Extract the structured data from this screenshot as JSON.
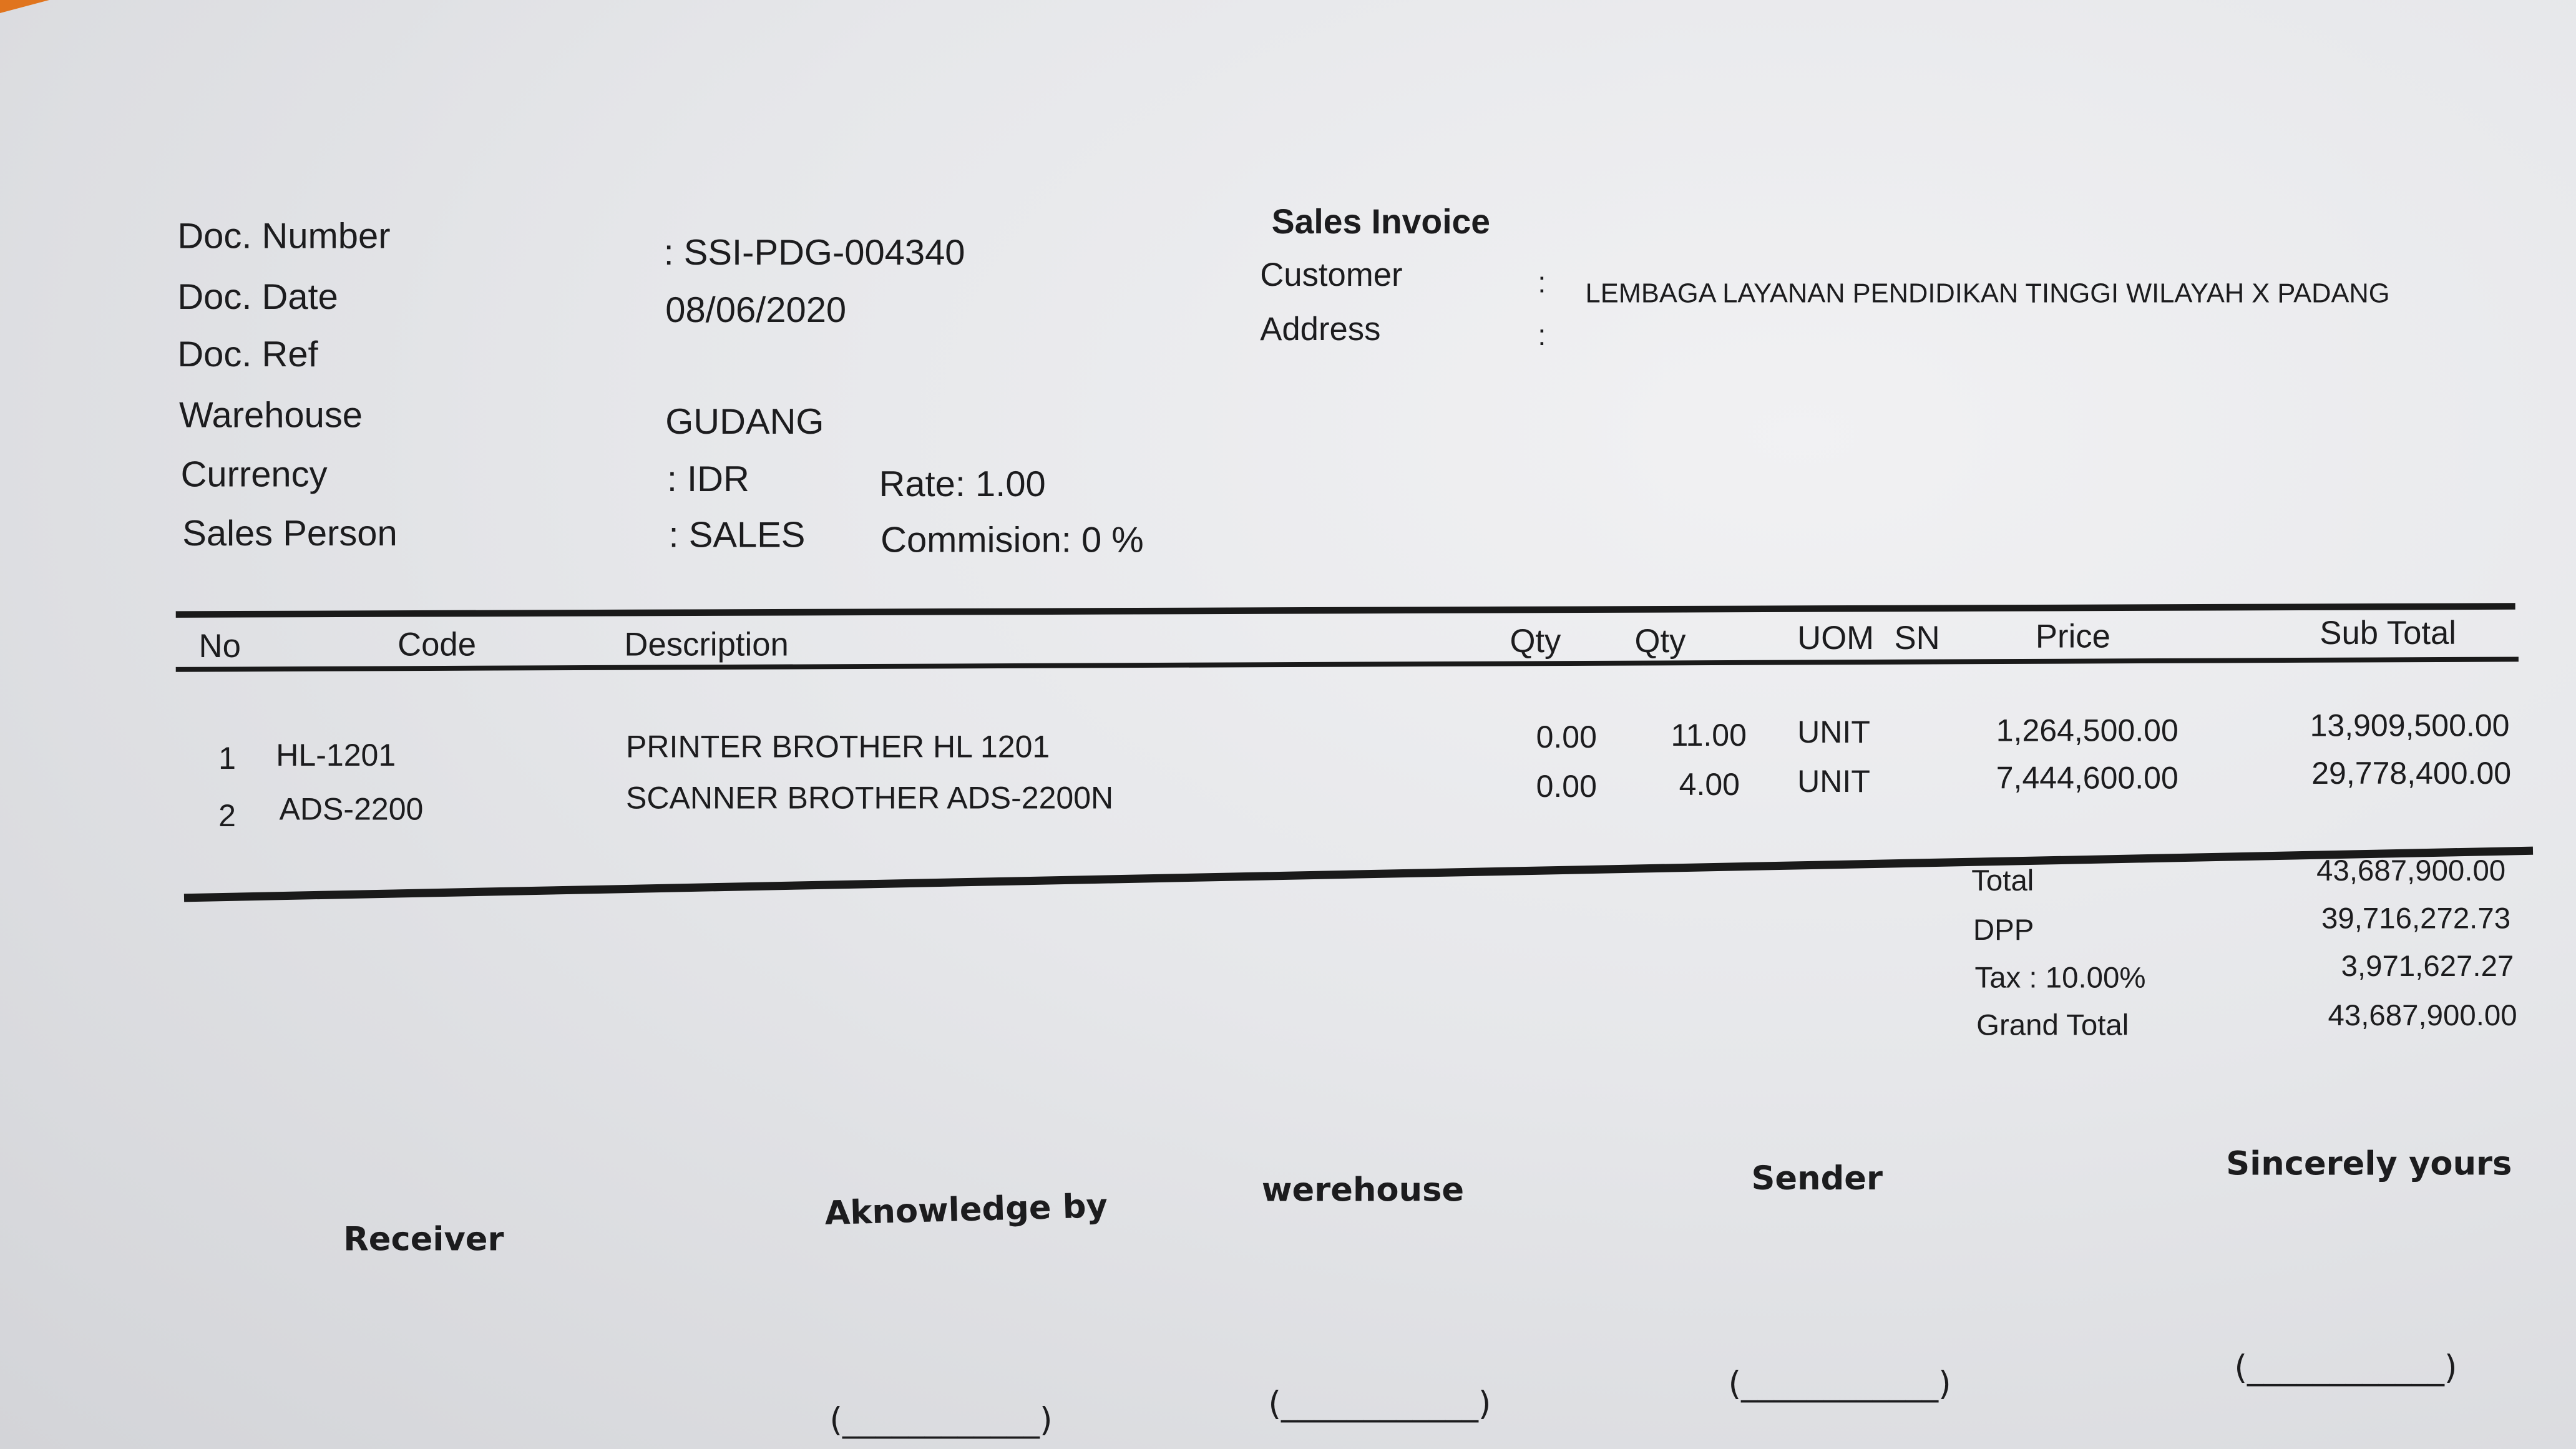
{
  "header": {
    "labels": [
      "Doc. Number",
      "Doc. Date",
      "Doc. Ref",
      "Warehouse",
      "Currency",
      "Sales Person"
    ],
    "doc_number": ": SSI-PDG-004340",
    "doc_date": "08/06/2020",
    "warehouse": "GUDANG",
    "currency": ": IDR",
    "rate": "Rate: 1.00",
    "sales_person": ": SALES",
    "commission": "Commision: 0 %",
    "title": "Sales Invoice",
    "customer_label": "Customer",
    "address_label": "Address",
    "colon": ":",
    "customer": "LEMBAGA LAYANAN PENDIDIKAN TINGGI WILAYAH X PADANG"
  },
  "table": {
    "columns": [
      "No",
      "Code",
      "Description",
      "Qty",
      "Qty",
      "UOM",
      "SN",
      "Price",
      "Sub Total"
    ],
    "rows": [
      {
        "no": "1",
        "code": "HL-1201",
        "description": "PRINTER BROTHER HL 1201",
        "qty1": "0.00",
        "qty2": "11.00",
        "uom": "UNIT",
        "price": "1,264,500.00",
        "subtotal": "13,909,500.00"
      },
      {
        "no": "2",
        "code": "ADS-2200",
        "description": "SCANNER BROTHER ADS-2200N",
        "qty1": "0.00",
        "qty2": "4.00",
        "uom": "UNIT",
        "price": "7,444,600.00",
        "subtotal": "29,778,400.00"
      }
    ]
  },
  "totals": [
    {
      "label": "Total",
      "value": "43,687,900.00"
    },
    {
      "label": "DPP",
      "value": "39,716,272.73"
    },
    {
      "label": "Tax : 10.00%",
      "value": "3,971,627.27"
    },
    {
      "label": "Grand Total",
      "value": "43,687,900.00"
    }
  ],
  "signatures": [
    "Receiver",
    "Aknowledge by",
    "werehouse",
    "Sender",
    "Sincerely yours"
  ],
  "signature_blank": "(____________)"
}
